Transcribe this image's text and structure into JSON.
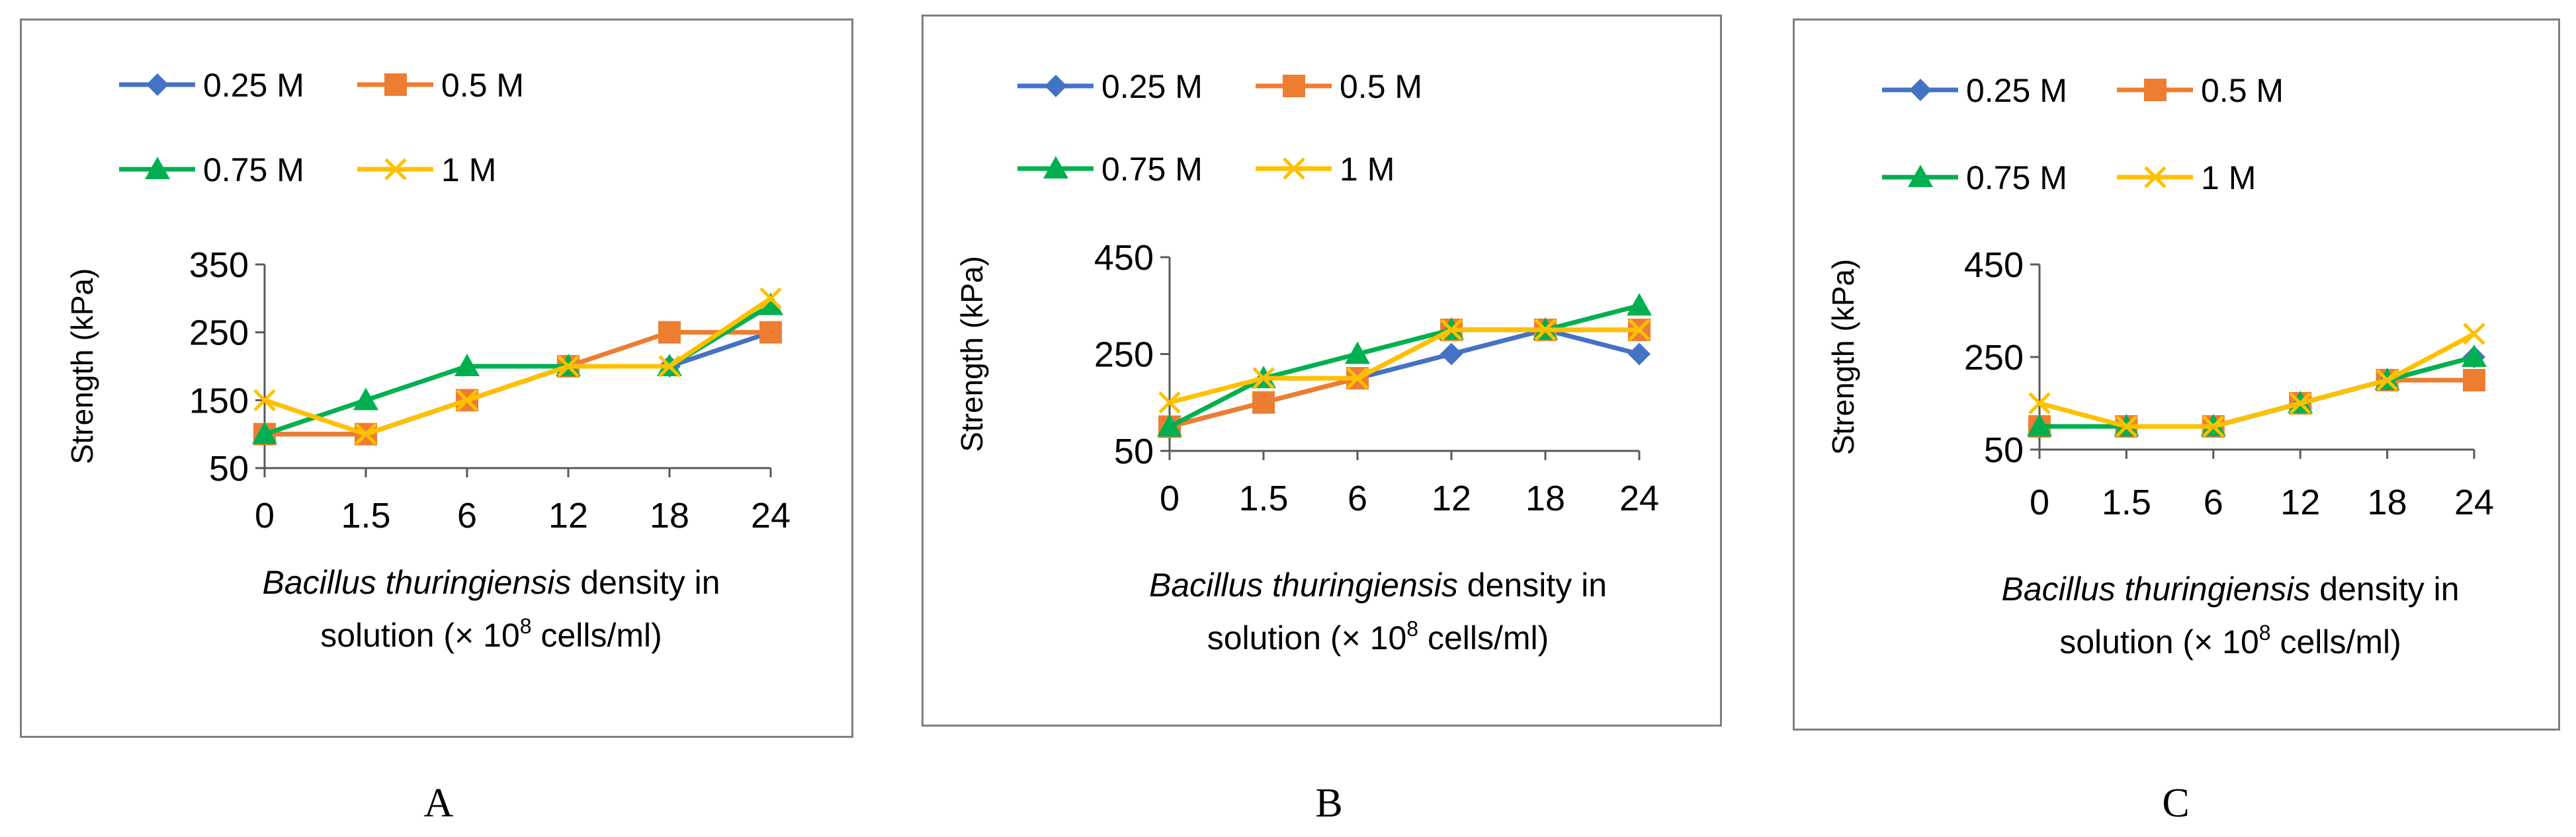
{
  "chart_data": [
    {
      "panel_label": "A",
      "type": "line",
      "categories": [
        "0",
        "1.5",
        "6",
        "12",
        "18",
        "24"
      ],
      "ylabel": "Strength (kPa)",
      "xlabel_italic": "Bacillus thuringiensis",
      "xlabel_rest": " density in",
      "xlabel_line2_a": "solution  (× 10",
      "xlabel_sup": "8",
      "xlabel_line2_b": " cells/ml)",
      "ylim": [
        50,
        350
      ],
      "yticks": [
        50,
        150,
        250,
        350
      ],
      "series": [
        {
          "name": "0.25 M",
          "color": "#4472C4",
          "marker": "diamond",
          "values": [
            100,
            100,
            150,
            200,
            200,
            250
          ]
        },
        {
          "name": "0.5 M",
          "color": "#ED7D31",
          "marker": "square",
          "values": [
            100,
            100,
            150,
            200,
            250,
            250
          ]
        },
        {
          "name": "0.75 M",
          "color": "#00B050",
          "marker": "triangle",
          "values": [
            100,
            150,
            200,
            200,
            200,
            290
          ]
        },
        {
          "name": "1 M",
          "color": "#FFC000",
          "marker": "x",
          "values": [
            150,
            100,
            150,
            200,
            200,
            300
          ]
        }
      ]
    },
    {
      "panel_label": "B",
      "type": "line",
      "categories": [
        "0",
        "1.5",
        "6",
        "12",
        "18",
        "24"
      ],
      "ylabel": "Strength (kPa)",
      "xlabel_italic": "Bacillus thuringiensis",
      "xlabel_rest": " density in",
      "xlabel_line2_a": "solution  (× 10",
      "xlabel_sup": "8",
      "xlabel_line2_b": " cells/ml)",
      "ylim": [
        50,
        450
      ],
      "yticks": [
        50,
        250,
        450
      ],
      "series": [
        {
          "name": "0.25 M",
          "color": "#4472C4",
          "marker": "diamond",
          "values": [
            100,
            150,
            200,
            250,
            300,
            250
          ]
        },
        {
          "name": "0.5 M",
          "color": "#ED7D31",
          "marker": "square",
          "values": [
            100,
            150,
            200,
            300,
            300,
            300
          ]
        },
        {
          "name": "0.75 M",
          "color": "#00B050",
          "marker": "triangle",
          "values": [
            100,
            200,
            250,
            300,
            300,
            350
          ]
        },
        {
          "name": "1 M",
          "color": "#FFC000",
          "marker": "x",
          "values": [
            150,
            200,
            200,
            300,
            300,
            300
          ]
        }
      ]
    },
    {
      "panel_label": "C",
      "type": "line",
      "categories": [
        "0",
        "1.5",
        "6",
        "12",
        "18",
        "24"
      ],
      "ylabel": "Strength (kPa)",
      "xlabel_italic": "Bacillus thuringiensis",
      "xlabel_rest": " density in",
      "xlabel_line2_a": "solution  (× 10",
      "xlabel_sup": "8",
      "xlabel_line2_b": " cells/ml)",
      "ylim": [
        50,
        450
      ],
      "yticks": [
        50,
        250,
        450
      ],
      "series": [
        {
          "name": "0.25 M",
          "color": "#4472C4",
          "marker": "diamond",
          "values": [
            100,
            100,
            100,
            150,
            200,
            250
          ]
        },
        {
          "name": "0.5 M",
          "color": "#ED7D31",
          "marker": "square",
          "values": [
            100,
            100,
            100,
            150,
            200,
            200
          ]
        },
        {
          "name": "0.75 M",
          "color": "#00B050",
          "marker": "triangle",
          "values": [
            100,
            100,
            100,
            150,
            200,
            250
          ]
        },
        {
          "name": "1 M",
          "color": "#FFC000",
          "marker": "x",
          "values": [
            150,
            100,
            100,
            150,
            200,
            300
          ]
        }
      ]
    }
  ]
}
